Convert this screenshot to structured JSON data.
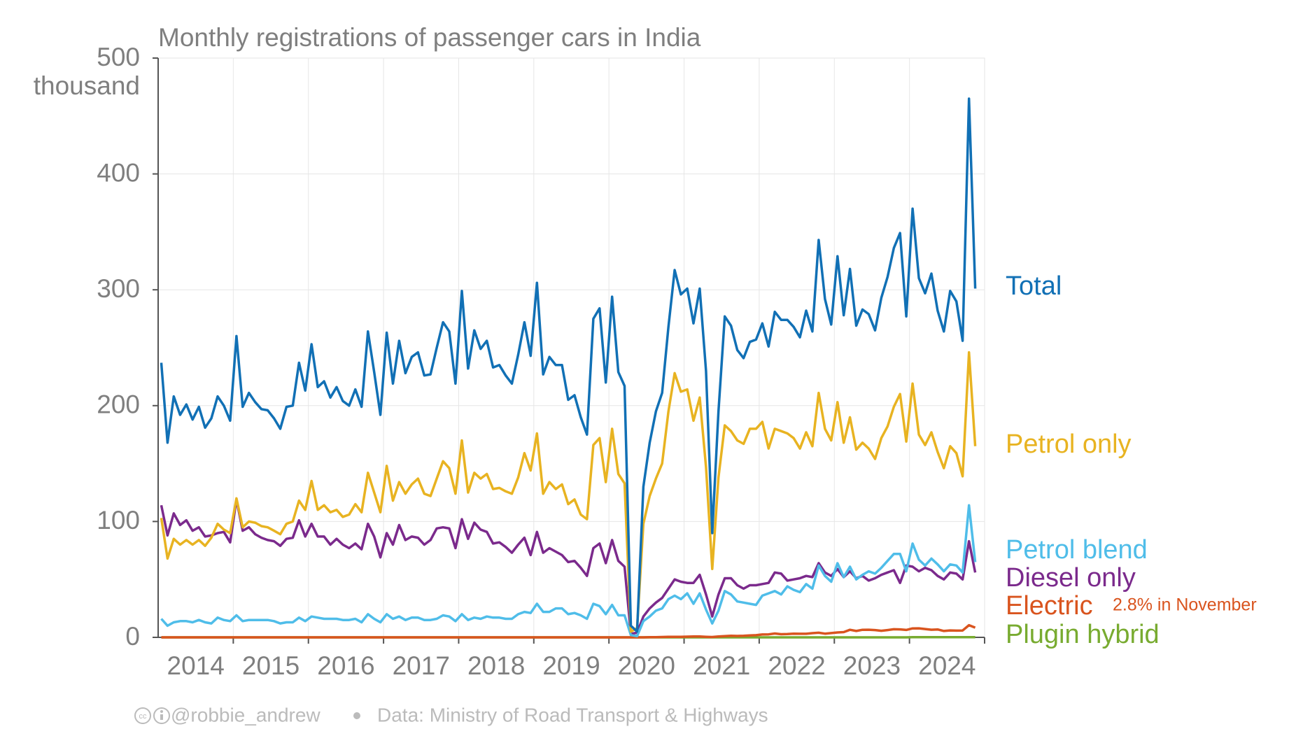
{
  "chart_data": {
    "type": "line",
    "title": "Monthly registrations of passenger cars in India",
    "y_unit": "thousand",
    "annotation": "2.8% in November",
    "credit": "@robbie_andrew",
    "source": "Data: Ministry of Road Transport & Highways",
    "xlim": [
      2014,
      2025
    ],
    "xticks": [
      {
        "value": 2014.5,
        "label": "2014"
      },
      {
        "value": 2015.5,
        "label": "2015"
      },
      {
        "value": 2016.5,
        "label": "2016"
      },
      {
        "value": 2017.5,
        "label": "2017"
      },
      {
        "value": 2018.5,
        "label": "2018"
      },
      {
        "value": 2019.5,
        "label": "2019"
      },
      {
        "value": 2020.5,
        "label": "2020"
      },
      {
        "value": 2021.5,
        "label": "2021"
      },
      {
        "value": 2022.5,
        "label": "2022"
      },
      {
        "value": 2023.5,
        "label": "2023"
      },
      {
        "value": 2024.5,
        "label": "2024"
      }
    ],
    "ylim": [
      0,
      500
    ],
    "yticks": [
      0,
      100,
      200,
      300,
      400,
      500
    ],
    "grid": true,
    "x": [
      2014.042,
      2014.125,
      2014.208,
      2014.292,
      2014.375,
      2014.458,
      2014.542,
      2014.625,
      2014.708,
      2014.792,
      2014.875,
      2014.958,
      2015.042,
      2015.125,
      2015.208,
      2015.292,
      2015.375,
      2015.458,
      2015.542,
      2015.625,
      2015.708,
      2015.792,
      2015.875,
      2015.958,
      2016.042,
      2016.125,
      2016.208,
      2016.292,
      2016.375,
      2016.458,
      2016.542,
      2016.625,
      2016.708,
      2016.792,
      2016.875,
      2016.958,
      2017.042,
      2017.125,
      2017.208,
      2017.292,
      2017.375,
      2017.458,
      2017.542,
      2017.625,
      2017.708,
      2017.792,
      2017.875,
      2017.958,
      2018.042,
      2018.125,
      2018.208,
      2018.292,
      2018.375,
      2018.458,
      2018.542,
      2018.625,
      2018.708,
      2018.792,
      2018.875,
      2018.958,
      2019.042,
      2019.125,
      2019.208,
      2019.292,
      2019.375,
      2019.458,
      2019.542,
      2019.625,
      2019.708,
      2019.792,
      2019.875,
      2019.958,
      2020.042,
      2020.125,
      2020.208,
      2020.292,
      2020.375,
      2020.458,
      2020.542,
      2020.625,
      2020.708,
      2020.792,
      2020.875,
      2020.958,
      2021.042,
      2021.125,
      2021.208,
      2021.292,
      2021.375,
      2021.458,
      2021.542,
      2021.625,
      2021.708,
      2021.792,
      2021.875,
      2021.958,
      2022.042,
      2022.125,
      2022.208,
      2022.292,
      2022.375,
      2022.458,
      2022.542,
      2022.625,
      2022.708,
      2022.792,
      2022.875,
      2022.958,
      2023.042,
      2023.125,
      2023.208,
      2023.292,
      2023.375,
      2023.458,
      2023.542,
      2023.625,
      2023.708,
      2023.792,
      2023.875,
      2023.958,
      2024.042,
      2024.125,
      2024.208,
      2024.292,
      2024.375,
      2024.458,
      2024.542,
      2024.625,
      2024.708,
      2024.792,
      2024.875
    ],
    "series": [
      {
        "name": "Total",
        "color": "#1170b5",
        "values": [
          237,
          168,
          208,
          192,
          201,
          188,
          199,
          181,
          189,
          208,
          200,
          187,
          260,
          199,
          211,
          203,
          197,
          196,
          189,
          180,
          199,
          200,
          237,
          213,
          253,
          216,
          221,
          207,
          216,
          204,
          200,
          214,
          199,
          264,
          229,
          192,
          263,
          219,
          256,
          228,
          242,
          246,
          226,
          227,
          250,
          272,
          264,
          219,
          299,
          232,
          265,
          249,
          256,
          233,
          235,
          226,
          219,
          244,
          272,
          243,
          306,
          227,
          242,
          235,
          235,
          205,
          209,
          190,
          175,
          275,
          284,
          220,
          294,
          229,
          217,
          10,
          5,
          130,
          168,
          195,
          211,
          268,
          317,
          296,
          301,
          271,
          301,
          230,
          90,
          195,
          277,
          269,
          248,
          241,
          255,
          257,
          271,
          251,
          281,
          274,
          274,
          268,
          259,
          282,
          264,
          343,
          292,
          270,
          329,
          278,
          318,
          269,
          283,
          279,
          265,
          293,
          311,
          336,
          349,
          277,
          370,
          310,
          297,
          314,
          282,
          264,
          299,
          290,
          256,
          465,
          301
        ]
      },
      {
        "name": "Petrol only",
        "color": "#e8b321",
        "values": [
          103,
          68,
          85,
          80,
          84,
          80,
          84,
          79,
          86,
          98,
          93,
          90,
          120,
          95,
          100,
          99,
          96,
          95,
          92,
          89,
          98,
          100,
          118,
          110,
          135,
          110,
          114,
          108,
          110,
          104,
          106,
          115,
          108,
          142,
          125,
          108,
          148,
          118,
          134,
          124,
          132,
          137,
          124,
          122,
          137,
          152,
          146,
          124,
          170,
          125,
          142,
          137,
          141,
          128,
          129,
          126,
          124,
          138,
          159,
          144,
          176,
          124,
          134,
          128,
          132,
          115,
          119,
          106,
          102,
          166,
          172,
          134,
          180,
          141,
          133,
          5,
          8,
          98,
          122,
          137,
          150,
          195,
          228,
          212,
          214,
          187,
          207,
          147,
          59,
          138,
          183,
          178,
          170,
          167,
          180,
          180,
          186,
          163,
          180,
          178,
          176,
          172,
          163,
          177,
          165,
          211,
          180,
          170,
          203,
          168,
          190,
          162,
          168,
          163,
          154,
          172,
          182,
          199,
          210,
          169,
          219,
          175,
          166,
          177,
          160,
          146,
          165,
          159,
          139,
          246,
          165
        ]
      },
      {
        "name": "Petrol blend",
        "color": "#4fbde9",
        "values": [
          16,
          10,
          13,
          14,
          14,
          13,
          15,
          13,
          12,
          17,
          15,
          14,
          19,
          14,
          15,
          15,
          15,
          15,
          14,
          12,
          13,
          13,
          17,
          14,
          18,
          17,
          16,
          16,
          16,
          15,
          15,
          16,
          13,
          20,
          16,
          13,
          20,
          16,
          18,
          15,
          17,
          17,
          15,
          15,
          16,
          19,
          18,
          14,
          20,
          15,
          17,
          16,
          18,
          17,
          17,
          16,
          16,
          20,
          22,
          21,
          29,
          22,
          22,
          25,
          25,
          20,
          21,
          19,
          16,
          29,
          27,
          20,
          28,
          19,
          19,
          2,
          1,
          14,
          18,
          23,
          25,
          33,
          36,
          33,
          38,
          29,
          38,
          24,
          12,
          23,
          40,
          37,
          31,
          30,
          29,
          28,
          36,
          38,
          40,
          37,
          44,
          41,
          39,
          46,
          42,
          62,
          53,
          48,
          64,
          52,
          61,
          50,
          54,
          57,
          55,
          60,
          66,
          72,
          72,
          57,
          81,
          67,
          62,
          68,
          63,
          57,
          63,
          62,
          56,
          114,
          65
        ]
      },
      {
        "name": "Diesel only",
        "color": "#7b2a8c",
        "values": [
          114,
          88,
          107,
          97,
          101,
          92,
          95,
          87,
          88,
          90,
          91,
          82,
          119,
          92,
          95,
          89,
          86,
          84,
          83,
          79,
          85,
          86,
          101,
          87,
          98,
          87,
          87,
          80,
          85,
          80,
          77,
          81,
          76,
          98,
          87,
          69,
          90,
          80,
          97,
          84,
          87,
          86,
          80,
          84,
          94,
          95,
          94,
          77,
          102,
          85,
          99,
          93,
          91,
          81,
          82,
          78,
          73,
          80,
          86,
          71,
          91,
          73,
          77,
          74,
          71,
          65,
          66,
          60,
          53,
          77,
          81,
          64,
          84,
          66,
          61,
          3,
          4,
          18,
          25,
          30,
          34,
          42,
          50,
          48,
          47,
          47,
          54,
          37,
          18,
          37,
          51,
          51,
          45,
          42,
          45,
          45,
          46,
          47,
          56,
          55,
          49,
          50,
          51,
          53,
          52,
          64,
          56,
          53,
          59,
          52,
          57,
          51,
          53,
          49,
          51,
          54,
          56,
          58,
          47,
          62,
          61,
          57,
          60,
          58,
          53,
          50,
          56,
          55,
          50,
          83,
          56
        ]
      },
      {
        "name": "Electric",
        "color": "#d9541e",
        "values": [
          0,
          0,
          0,
          0,
          0,
          0,
          0,
          0,
          0,
          0,
          0,
          0,
          0,
          0,
          0,
          0,
          0,
          0,
          0,
          0,
          0,
          0,
          0,
          0,
          0,
          0,
          0,
          0,
          0,
          0,
          0,
          0,
          0,
          0,
          0,
          0,
          0,
          0,
          0,
          0,
          0,
          0,
          0,
          0,
          0,
          0,
          0,
          0,
          0,
          0,
          0,
          0,
          0,
          0,
          0,
          0,
          0,
          0,
          0,
          0,
          0,
          0,
          0,
          0,
          0,
          0,
          0,
          0,
          0,
          0,
          0,
          0,
          0,
          0,
          0,
          0,
          0,
          0,
          0.2,
          0.2,
          0.3,
          0.4,
          0.5,
          0.4,
          0.6,
          0.7,
          0.8,
          0.5,
          0.3,
          0.7,
          1.1,
          1.3,
          1.2,
          1.3,
          1.7,
          1.9,
          2.5,
          2.6,
          3.3,
          2.7,
          2.9,
          3.2,
          3.1,
          3.1,
          3.6,
          4.0,
          3.2,
          3.7,
          4.2,
          4.5,
          6.5,
          5.5,
          6.5,
          6.6,
          6.3,
          5.7,
          6.3,
          7.0,
          6.9,
          6.4,
          7.7,
          7.8,
          7.2,
          6.6,
          6.8,
          5.5,
          6.0,
          5.8,
          5.9,
          10.5,
          8.4
        ]
      },
      {
        "name": "Plugin hybrid",
        "color": "#78ab30",
        "values": [
          0,
          0,
          0,
          0,
          0,
          0,
          0,
          0,
          0,
          0,
          0,
          0,
          0,
          0,
          0,
          0,
          0,
          0,
          0,
          0,
          0,
          0,
          0,
          0,
          0,
          0,
          0,
          0,
          0,
          0,
          0,
          0,
          0,
          0,
          0,
          0,
          0,
          0,
          0,
          0,
          0,
          0,
          0,
          0,
          0,
          0,
          0,
          0,
          0,
          0,
          0,
          0,
          0,
          0,
          0,
          0,
          0,
          0,
          0,
          0,
          0,
          0,
          0,
          0,
          0,
          0,
          0,
          0,
          0,
          0,
          0,
          0,
          0,
          0,
          0,
          0,
          0,
          0,
          0,
          0,
          0,
          0,
          0,
          0,
          0,
          0,
          0,
          0,
          0,
          0,
          0,
          0,
          0,
          0,
          0,
          0,
          0,
          0,
          0,
          0,
          0,
          0,
          0,
          0,
          0,
          0,
          0,
          0,
          0,
          0,
          0,
          0,
          0,
          0,
          0,
          0,
          0,
          0,
          0,
          0,
          0.1,
          0.1,
          0.1,
          0.1,
          0.1,
          0.1,
          0.1,
          0.1,
          0.1,
          0.1,
          0.1
        ]
      }
    ]
  }
}
